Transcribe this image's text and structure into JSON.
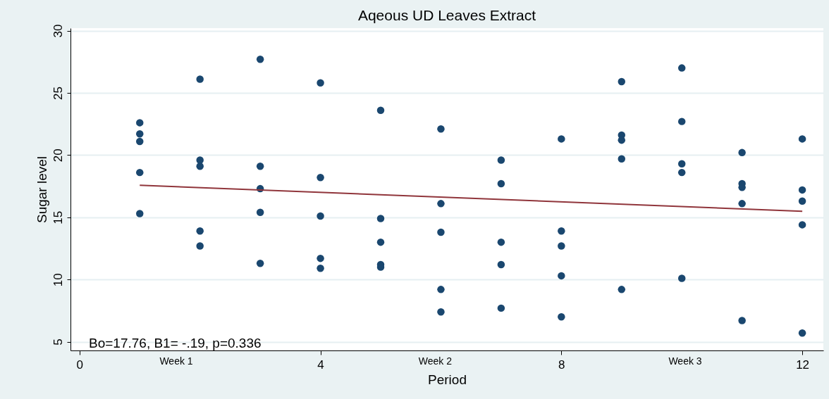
{
  "chart_data": {
    "type": "scatter",
    "title": "Aqeous UD Leaves Extract",
    "xlabel": "Period",
    "ylabel": "Sugar level",
    "xlim": [
      -0.15,
      12.35
    ],
    "ylim": [
      4.3,
      30.2
    ],
    "xticks": [
      0,
      4,
      8,
      12,
      {
        "value": 1.6,
        "label": "Week 1"
      },
      {
        "value": 5.9,
        "label": "Week 2"
      },
      {
        "value": 10.05,
        "label": "Week 3"
      }
    ],
    "yticks": [
      5,
      10,
      15,
      20,
      25,
      30
    ],
    "grid": "y",
    "marker": "circle",
    "annotations": [
      "Bo=17.76, B1= -.19, p=0.336"
    ],
    "series": [
      {
        "color": "#1a476f",
        "x": [
          1,
          1,
          1,
          1,
          1,
          2,
          2,
          2,
          2,
          2,
          3,
          3,
          3,
          3,
          3,
          4,
          4,
          4,
          4,
          4,
          5,
          5,
          5,
          5,
          5,
          6,
          6,
          6,
          6,
          6,
          7,
          7,
          7,
          7,
          7,
          8,
          8,
          8,
          8,
          8,
          9,
          9,
          9,
          9,
          9,
          10,
          10,
          10,
          10,
          10,
          11,
          11,
          11,
          11,
          11,
          12,
          12,
          12,
          12,
          12
        ],
        "values": [
          22.6,
          21.7,
          21.1,
          18.6,
          15.3,
          26.1,
          19.6,
          19.1,
          13.9,
          12.7,
          27.7,
          19.1,
          17.3,
          15.4,
          11.3,
          25.8,
          18.2,
          15.1,
          11.7,
          10.9,
          23.6,
          14.9,
          13.0,
          11.2,
          11.0,
          22.1,
          16.1,
          13.8,
          9.2,
          7.4,
          19.6,
          17.7,
          13.0,
          11.2,
          7.7,
          21.3,
          13.9,
          12.7,
          10.3,
          7.0,
          25.9,
          21.6,
          21.2,
          19.7,
          9.2,
          27.0,
          22.7,
          19.3,
          18.6,
          10.1,
          20.2,
          17.7,
          17.4,
          16.1,
          6.7,
          21.3,
          17.2,
          16.3,
          14.4,
          5.7
        ]
      },
      {
        "type": "line",
        "color": "#90353b",
        "x": [
          1,
          12
        ],
        "values": [
          17.57,
          15.48
        ],
        "marker": "none",
        "line_style": "solid"
      }
    ]
  }
}
